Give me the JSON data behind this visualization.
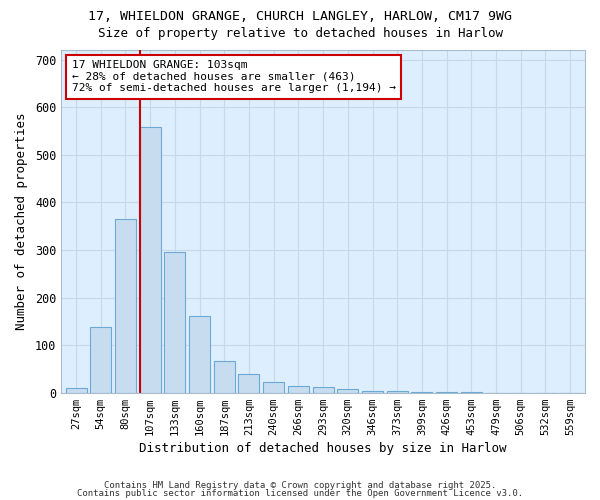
{
  "title1": "17, WHIELDON GRANGE, CHURCH LANGLEY, HARLOW, CM17 9WG",
  "title2": "Size of property relative to detached houses in Harlow",
  "xlabel": "Distribution of detached houses by size in Harlow",
  "ylabel": "Number of detached properties",
  "bar_labels": [
    "27sqm",
    "54sqm",
    "80sqm",
    "107sqm",
    "133sqm",
    "160sqm",
    "187sqm",
    "213sqm",
    "240sqm",
    "266sqm",
    "293sqm",
    "320sqm",
    "346sqm",
    "373sqm",
    "399sqm",
    "426sqm",
    "453sqm",
    "479sqm",
    "506sqm",
    "532sqm",
    "559sqm"
  ],
  "bar_values": [
    10,
    137,
    365,
    558,
    296,
    162,
    67,
    40,
    22,
    15,
    12,
    8,
    4,
    3,
    2,
    1,
    1,
    0,
    0,
    0,
    0
  ],
  "bar_color": "#c8dcf0",
  "bar_edge_color": "#6aaad4",
  "vline_color": "#cc0000",
  "annotation_text": "17 WHIELDON GRANGE: 103sqm\n← 28% of detached houses are smaller (463)\n72% of semi-detached houses are larger (1,194) →",
  "annotation_box_color": "#ffffff",
  "annotation_box_edge": "#cc0000",
  "ylim": [
    0,
    720
  ],
  "yticks": [
    0,
    100,
    200,
    300,
    400,
    500,
    600,
    700
  ],
  "grid_color": "#c8d8e8",
  "bg_color": "#ddeeff",
  "fig_bg_color": "#ffffff",
  "footer1": "Contains HM Land Registry data © Crown copyright and database right 2025.",
  "footer2": "Contains public sector information licensed under the Open Government Licence v3.0."
}
